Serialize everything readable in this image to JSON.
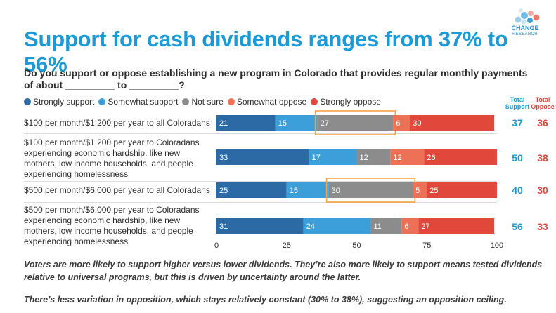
{
  "title": "Support for cash dividends ranges from 37% to 56%",
  "logo": {
    "text": "CHANGE",
    "subtext": "RESEARCH"
  },
  "question": "Do you support or oppose establishing a new program in Colorado that provides regular monthly payments of about _________ to _________?",
  "column_headers": {
    "total_support": "Total Support",
    "total_oppose": "Total Oppose"
  },
  "colors": {
    "strongly_support": "#2c6aa6",
    "somewhat_support": "#3d9fd9",
    "not_sure": "#8c8c8c",
    "somewhat_oppose": "#ec7157",
    "strongly_oppose": "#e1473b",
    "highlight": "#f4a340",
    "support_total": "#1a9ad6",
    "oppose_total": "#e1473b"
  },
  "chart_data": {
    "type": "bar",
    "orientation": "horizontal",
    "stacked": true,
    "categories": [
      "$100 per month/$1,200 per year to all Coloradans",
      "$100 per month/$1,200 per year to Coloradans experiencing economic hardship, like new mothers, low income households, and people experiencing homelessness",
      "$500 per month/$6,000 per year to all Coloradans",
      "$500 per month/$6,000 per year to Coloradans experiencing economic hardship, like new mothers, low income households, and people experiencing homelessness"
    ],
    "series": [
      {
        "name": "Strongly support",
        "values": [
          21,
          33,
          25,
          31
        ]
      },
      {
        "name": "Somewhat support",
        "values": [
          15,
          17,
          15,
          24
        ]
      },
      {
        "name": "Not sure",
        "values": [
          27,
          12,
          30,
          11
        ]
      },
      {
        "name": "Somewhat oppose",
        "values": [
          6,
          12,
          5,
          6
        ]
      },
      {
        "name": "Strongly oppose",
        "values": [
          30,
          26,
          25,
          27
        ]
      }
    ],
    "total_support": [
      37,
      50,
      40,
      56
    ],
    "total_oppose": [
      36,
      38,
      30,
      33
    ],
    "highlighted_series": "Not sure",
    "highlighted_rows": [
      0,
      2
    ],
    "xlim": [
      0,
      100
    ],
    "xticks": [
      0,
      25,
      50,
      75,
      100
    ],
    "xlabel": "",
    "ylabel": ""
  },
  "notes": [
    "Voters are more likely to support higher versus lower dividends. They’re also more likely to support means tested dividends relative to universal programs, but this is driven by uncertainty around the latter.",
    "There’s less variation in opposition, which stays relatively constant (30% to 38%), suggesting an opposition ceiling."
  ]
}
